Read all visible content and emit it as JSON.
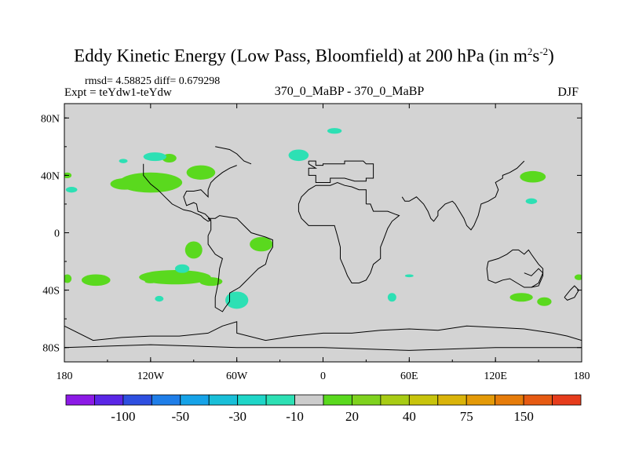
{
  "title": {
    "main": "Eddy Kinetic Energy (Low Pass, Bloomfield) at 200 hPa (in m",
    "sup1": "2",
    "mid": "s",
    "sup2": "-2",
    "close": ")"
  },
  "subtitle": {
    "stats": "rmsd= 4.58825 diff= 0.679298",
    "expt": "Expt = teYdw1-teYdw",
    "center": "370_0_MaBP - 370_0_MaBP",
    "season": "DJF"
  },
  "chart_data": {
    "type": "contour-map",
    "projection": "cylindrical-equidistant",
    "variable": "Eddy Kinetic Energy difference",
    "level": "200 hPa",
    "units": "m^2 s^-2",
    "xlim": [
      -180,
      180
    ],
    "ylim": [
      -90,
      90
    ],
    "x_ticks": [
      {
        "value": -180,
        "label": "180"
      },
      {
        "value": -120,
        "label": "120W"
      },
      {
        "value": -60,
        "label": "60W"
      },
      {
        "value": 0,
        "label": "0"
      },
      {
        "value": 60,
        "label": "60E"
      },
      {
        "value": 120,
        "label": "120E"
      },
      {
        "value": 180,
        "label": "180"
      }
    ],
    "y_ticks": [
      {
        "value": 80,
        "label": "80N"
      },
      {
        "value": 40,
        "label": "40N"
      },
      {
        "value": 0,
        "label": "0"
      },
      {
        "value": -40,
        "label": "40S"
      },
      {
        "value": -80,
        "label": "80S"
      }
    ],
    "background_color": "#d3d3d3",
    "colorbar": {
      "colors": [
        "#8c1ae6",
        "#5a26e6",
        "#2e4fe0",
        "#1f7ee8",
        "#16a3e8",
        "#19bfd8",
        "#1fd6c8",
        "#2de0b4",
        "#cccccc",
        "#5ad91e",
        "#7fd21e",
        "#a8cc14",
        "#c8c40c",
        "#dab40a",
        "#e49a08",
        "#e67c0a",
        "#e65a12",
        "#e63c1c"
      ],
      "labels": [
        {
          "text": "-100",
          "boundary": 2
        },
        {
          "text": "-50",
          "boundary": 4
        },
        {
          "text": "-30",
          "boundary": 6
        },
        {
          "text": "-10",
          "boundary": 8
        },
        {
          "text": "20",
          "boundary": 10
        },
        {
          "text": "40",
          "boundary": 12
        },
        {
          "text": "75",
          "boundary": 14
        },
        {
          "text": "150",
          "boundary": 16
        }
      ]
    },
    "regions": [
      {
        "cls": "pos",
        "lon": -120,
        "lat": 35,
        "rlon": 22,
        "rlat": 7
      },
      {
        "cls": "pos",
        "lon": -138,
        "lat": 34,
        "rlon": 10,
        "rlat": 4
      },
      {
        "cls": "pos",
        "lon": -85,
        "lat": 42,
        "rlon": 10,
        "rlat": 5
      },
      {
        "cls": "pos",
        "lon": -107,
        "lat": 52,
        "rlon": 5,
        "rlat": 3
      },
      {
        "cls": "pos",
        "lon": -178,
        "lat": 40,
        "rlon": 3,
        "rlat": 2
      },
      {
        "cls": "pos",
        "lon": -158,
        "lat": -33,
        "rlon": 10,
        "rlat": 4
      },
      {
        "cls": "pos",
        "lon": -103,
        "lat": -31,
        "rlon": 25,
        "rlat": 5
      },
      {
        "cls": "pos",
        "lon": -78,
        "lat": -34,
        "rlon": 8,
        "rlat": 3
      },
      {
        "cls": "pos",
        "lon": -90,
        "lat": -12,
        "rlon": 6,
        "rlat": 6
      },
      {
        "cls": "pos",
        "lon": -43,
        "lat": -8,
        "rlon": 8,
        "rlat": 5
      },
      {
        "cls": "pos",
        "lon": -178,
        "lat": -32,
        "rlon": 3,
        "rlat": 3
      },
      {
        "cls": "pos",
        "lon": 146,
        "lat": 39,
        "rlon": 9,
        "rlat": 4
      },
      {
        "cls": "pos",
        "lon": 138,
        "lat": -45,
        "rlon": 8,
        "rlat": 3
      },
      {
        "cls": "pos",
        "lon": 154,
        "lat": -48,
        "rlon": 5,
        "rlat": 3
      },
      {
        "cls": "pos",
        "lon": 178,
        "lat": -31,
        "rlon": 3,
        "rlat": 2
      },
      {
        "cls": "pos",
        "lon": -120,
        "lat": -34,
        "rlon": 4,
        "rlat": 1.2
      },
      {
        "cls": "neg",
        "lon": 8,
        "lat": 71,
        "rlon": 5,
        "rlat": 2
      },
      {
        "cls": "neg",
        "lon": -17,
        "lat": 54,
        "rlon": 7,
        "rlat": 4
      },
      {
        "cls": "neg",
        "lon": -117,
        "lat": 53,
        "rlon": 8,
        "rlat": 3
      },
      {
        "cls": "neg",
        "lon": -139,
        "lat": 50,
        "rlon": 3,
        "rlat": 1.5
      },
      {
        "cls": "neg",
        "lon": -175,
        "lat": 30,
        "rlon": 4,
        "rlat": 2
      },
      {
        "cls": "neg",
        "lon": -98,
        "lat": -25,
        "rlon": 5,
        "rlat": 3
      },
      {
        "cls": "neg",
        "lon": -60,
        "lat": -47,
        "rlon": 8,
        "rlat": 6
      },
      {
        "cls": "neg",
        "lon": 48,
        "lat": -45,
        "rlon": 3,
        "rlat": 3
      },
      {
        "cls": "neg",
        "lon": -114,
        "lat": -46,
        "rlon": 3,
        "rlat": 2
      },
      {
        "cls": "neg",
        "lon": 60,
        "lat": -30,
        "rlon": 3,
        "rlat": 1
      },
      {
        "cls": "neg",
        "lon": 145,
        "lat": 22,
        "rlon": 4,
        "rlat": 2
      }
    ],
    "coastlines": [
      [
        [
          -10,
          50
        ],
        [
          -5,
          50
        ],
        [
          -5,
          47
        ],
        [
          0,
          47
        ],
        [
          0,
          48
        ],
        [
          10,
          48
        ],
        [
          15,
          48
        ],
        [
          15,
          50
        ],
        [
          25,
          50
        ],
        [
          28,
          50
        ],
        [
          30,
          48
        ],
        [
          35,
          48
        ],
        [
          35,
          43
        ],
        [
          35,
          38
        ],
        [
          30,
          38
        ],
        [
          30,
          36
        ],
        [
          22,
          36
        ],
        [
          15,
          38
        ],
        [
          5,
          38
        ],
        [
          5,
          35
        ],
        [
          -5,
          35
        ],
        [
          -5,
          40
        ],
        [
          -10,
          40
        ],
        [
          -10,
          45
        ],
        [
          -5,
          45
        ],
        [
          -10,
          48
        ],
        [
          -10,
          50
        ]
      ],
      [
        [
          30,
          20
        ],
        [
          33,
          20
        ],
        [
          35,
          15
        ],
        [
          40,
          15
        ],
        [
          45,
          15
        ],
        [
          50,
          13
        ],
        [
          53,
          12
        ],
        [
          48,
          8
        ],
        [
          45,
          3
        ],
        [
          42,
          -5
        ],
        [
          40,
          -10
        ],
        [
          40,
          -18
        ],
        [
          35,
          -22
        ],
        [
          33,
          -28
        ],
        [
          30,
          -33
        ],
        [
          25,
          -35
        ],
        [
          20,
          -35
        ],
        [
          17,
          -30
        ],
        [
          15,
          -25
        ],
        [
          12,
          -18
        ],
        [
          12,
          -10
        ],
        [
          10,
          -2
        ],
        [
          8,
          5
        ],
        [
          0,
          5
        ],
        [
          -5,
          5
        ],
        [
          -10,
          5
        ],
        [
          -15,
          10
        ],
        [
          -17,
          15
        ],
        [
          -17,
          20
        ],
        [
          -15,
          25
        ],
        [
          -10,
          30
        ],
        [
          -5,
          33
        ],
        [
          0,
          33
        ],
        [
          5,
          33
        ],
        [
          10,
          35
        ],
        [
          15,
          33
        ],
        [
          20,
          32
        ],
        [
          25,
          30
        ],
        [
          30,
          30
        ],
        [
          30,
          20
        ]
      ],
      [
        [
          -80,
          10
        ],
        [
          -75,
          10
        ],
        [
          -72,
          12
        ],
        [
          -60,
          10
        ],
        [
          -55,
          5
        ],
        [
          -50,
          0
        ],
        [
          -40,
          -3
        ],
        [
          -35,
          -5
        ],
        [
          -35,
          -10
        ],
        [
          -38,
          -15
        ],
        [
          -40,
          -22
        ],
        [
          -45,
          -25
        ],
        [
          -50,
          -30
        ],
        [
          -55,
          -35
        ],
        [
          -58,
          -38
        ],
        [
          -65,
          -42
        ],
        [
          -65,
          -48
        ],
        [
          -68,
          -52
        ],
        [
          -70,
          -55
        ],
        [
          -75,
          -52
        ],
        [
          -75,
          -45
        ],
        [
          -73,
          -35
        ],
        [
          -72,
          -25
        ],
        [
          -70,
          -18
        ],
        [
          -75,
          -15
        ],
        [
          -80,
          -8
        ],
        [
          -80,
          -2
        ],
        [
          -78,
          2
        ],
        [
          -78,
          8
        ],
        [
          -80,
          10
        ]
      ],
      [
        [
          -125,
          48
        ],
        [
          -125,
          40
        ],
        [
          -120,
          34
        ],
        [
          -115,
          30
        ],
        [
          -110,
          25
        ],
        [
          -105,
          20
        ],
        [
          -97,
          16
        ],
        [
          -92,
          15
        ],
        [
          -85,
          12
        ],
        [
          -83,
          10
        ],
        [
          -80,
          8
        ],
        [
          -78,
          9
        ],
        [
          -82,
          13
        ],
        [
          -87,
          15
        ],
        [
          -88,
          20
        ],
        [
          -90,
          21
        ],
        [
          -95,
          19
        ],
        [
          -97,
          25
        ],
        [
          -95,
          29
        ],
        [
          -90,
          29
        ],
        [
          -85,
          30
        ],
        [
          -82,
          27
        ],
        [
          -80,
          25
        ],
        [
          -80,
          30
        ],
        [
          -78,
          35
        ],
        [
          -75,
          38
        ],
        [
          -70,
          42
        ],
        [
          -65,
          45
        ],
        [
          -60,
          47
        ]
      ],
      [
        [
          -75,
          60
        ],
        [
          -65,
          58
        ],
        [
          -60,
          55
        ],
        [
          -55,
          50
        ],
        [
          -50,
          48
        ]
      ],
      [
        [
          55,
          25
        ],
        [
          57,
          22
        ],
        [
          60,
          22
        ],
        [
          65,
          25
        ],
        [
          70,
          20
        ],
        [
          73,
          15
        ],
        [
          75,
          10
        ],
        [
          77,
          8
        ],
        [
          80,
          12
        ],
        [
          80,
          15
        ],
        [
          85,
          20
        ],
        [
          90,
          22
        ],
        [
          92,
          20
        ],
        [
          95,
          15
        ],
        [
          98,
          10
        ],
        [
          100,
          5
        ],
        [
          103,
          2
        ],
        [
          105,
          5
        ],
        [
          108,
          12
        ],
        [
          110,
          20
        ],
        [
          115,
          22
        ],
        [
          120,
          25
        ],
        [
          122,
          30
        ],
        [
          120,
          35
        ],
        [
          125,
          38
        ],
        [
          125,
          40
        ],
        [
          130,
          42
        ],
        [
          135,
          45
        ],
        [
          140,
          50
        ]
      ],
      [
        [
          115,
          -20
        ],
        [
          114,
          -25
        ],
        [
          115,
          -33
        ],
        [
          120,
          -35
        ],
        [
          125,
          -33
        ],
        [
          130,
          -32
        ],
        [
          135,
          -35
        ],
        [
          140,
          -38
        ],
        [
          145,
          -38
        ],
        [
          150,
          -37
        ],
        [
          153,
          -30
        ],
        [
          153,
          -25
        ],
        [
          150,
          -22
        ],
        [
          145,
          -15
        ],
        [
          143,
          -12
        ],
        [
          140,
          -15
        ],
        [
          136,
          -12
        ],
        [
          132,
          -12
        ],
        [
          128,
          -15
        ],
        [
          122,
          -18
        ],
        [
          115,
          -20
        ]
      ],
      [
        [
          -180,
          -65
        ],
        [
          -160,
          -75
        ],
        [
          -140,
          -73
        ],
        [
          -120,
          -72
        ],
        [
          -100,
          -72
        ],
        [
          -80,
          -70
        ],
        [
          -70,
          -65
        ],
        [
          -60,
          -62
        ],
        [
          -60,
          -70
        ],
        [
          -40,
          -75
        ],
        [
          -20,
          -72
        ],
        [
          0,
          -70
        ],
        [
          20,
          -70
        ],
        [
          40,
          -68
        ],
        [
          60,
          -67
        ],
        [
          80,
          -68
        ],
        [
          100,
          -65
        ],
        [
          120,
          -66
        ],
        [
          140,
          -67
        ],
        [
          160,
          -70
        ],
        [
          170,
          -72
        ],
        [
          180,
          -75
        ]
      ],
      [
        [
          140,
          -28
        ],
        [
          145,
          -30
        ],
        [
          150,
          -25
        ],
        [
          153,
          -28
        ],
        [
          150,
          -35
        ],
        [
          145,
          -38
        ],
        [
          140,
          -38
        ]
      ],
      [
        [
          168,
          -45
        ],
        [
          172,
          -40
        ],
        [
          175,
          -37
        ],
        [
          178,
          -40
        ],
        [
          175,
          -45
        ],
        [
          170,
          -47
        ],
        [
          168,
          -45
        ]
      ],
      [
        [
          -180,
          -80
        ],
        [
          -120,
          -78
        ],
        [
          -60,
          -80
        ],
        [
          0,
          -80
        ],
        [
          60,
          -82
        ],
        [
          120,
          -80
        ],
        [
          180,
          -80
        ]
      ]
    ]
  }
}
